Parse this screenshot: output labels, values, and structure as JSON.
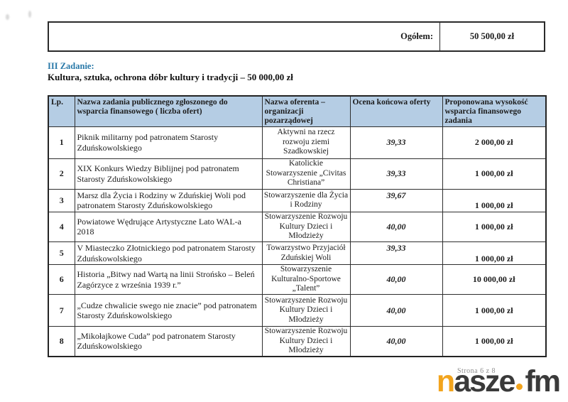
{
  "colors": {
    "heading_blue": "#2878a8",
    "table_header_bg": "#b5cde4",
    "border_dark": "#2a2a2a",
    "logo_orange": "#f2a41d",
    "logo_dark": "#3a3a3a",
    "page_number_gray": "#8f8f8f"
  },
  "summary": {
    "label": "Ogółem:",
    "value": "50 500,00 zł"
  },
  "section": {
    "heading": "III Zadanie:",
    "subtitle": "Kultura, sztuka, ochrona dóbr kultury i tradycji – 50 000,00 zł"
  },
  "table": {
    "headers": [
      "Lp.",
      "Nazwa zadania publicznego zgłoszonego do wsparcia finansowego ( liczba ofert)",
      "Nazwa oferenta – organizacji pozarządowej",
      "Ocena końcowa oferty",
      "Proponowana wysokość wsparcia finansowego zadania"
    ],
    "rows": [
      {
        "lp": "1",
        "task": "Piknik militarny pod patronatem Starosty Zduńskowolskiego",
        "offerer": "Aktywni na rzecz rozwoju ziemi Szadkowskiej",
        "score": "39,33",
        "amount": "2 000,00 zł"
      },
      {
        "lp": "2",
        "task": "XIX Konkurs Wiedzy Biblijnej pod patronatem Starosty Zduńskowolskiego",
        "offerer": "Katolickie Stowarzyszenie „Civitas Christiana”",
        "score": "39,33",
        "amount": "1 000,00 zł"
      },
      {
        "lp": "3",
        "task": "Marsz dla Życia i Rodziny w Zduńskiej Woli pod patronatem Starosty Zduńskowolskiego",
        "offerer": "Stowarzyszenie dla Życia i Rodziny",
        "score": "39,67",
        "amount": "1 000,00 zł"
      },
      {
        "lp": "4",
        "task": "Powiatowe Wędrujące Artystyczne Lato WAL-a 2018",
        "offerer": "Stowarzyszenie Rozwoju Kultury Dzieci i Młodzieży",
        "score": "40,00",
        "amount": "1 000,00 zł"
      },
      {
        "lp": "5",
        "task": "V Miasteczko Złotnickiego pod patronatem Starosty Zduńskowolskiego",
        "offerer": "Towarzystwo Przyjaciół Zduńskiej Woli",
        "score": "39,33",
        "amount": "1 000,00 zł"
      },
      {
        "lp": "6",
        "task": "Historia „Bitwy nad Wartą na linii Strońsko – Beleń Zagórzyce z września 1939 r.”",
        "offerer": "Stowarzyszenie Kulturalno-Sportowe „Talent”",
        "score": "40,00",
        "amount": "10 000,00 zł"
      },
      {
        "lp": "7",
        "task": "„Cudze chwalicie swego nie znacie” pod patronatem Starosty Zduńskowolskiego",
        "offerer": "Stowarzyszenie Rozwoju Kultury Dzieci i Młodzieży",
        "score": "40,00",
        "amount": "1 000,00 zł"
      },
      {
        "lp": "8",
        "task": "„Mikołajkowe Cuda” pod patronatem Starosty Zduńskowolskiego",
        "offerer": "Stowarzyszenie Rozwoju Kultury Dzieci i Młodzieży",
        "score": "40,00",
        "amount": "1 000,00 zł"
      }
    ]
  },
  "footer": {
    "page_text": "Strona 6 z 8",
    "logo": {
      "part1": "n",
      "part2": "asze",
      "part3": "fm"
    }
  }
}
